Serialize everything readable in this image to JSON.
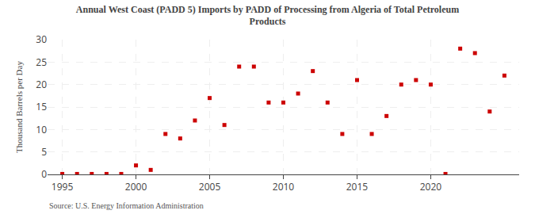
{
  "chart_data": {
    "type": "scatter",
    "title": "Annual West Coast (PADD 5) Imports by PADD of Processing from Algeria of Total Petroleum\nProducts",
    "ylabel": "Thousand Barrels per Day",
    "annotations": [
      "Source: U.S. Energy Information Administration"
    ],
    "x": [
      1995,
      1996,
      1997,
      1998,
      1999,
      2000,
      2001,
      2002,
      2003,
      2004,
      2005,
      2006,
      2007,
      2008,
      2009,
      2010,
      2011,
      2012,
      2013,
      2014,
      2015,
      2016,
      2017,
      2018,
      2019,
      2020,
      2021,
      2022,
      2023,
      2024,
      2025
    ],
    "values": [
      0.1,
      0.1,
      0.1,
      0.1,
      0.1,
      2.0,
      1.0,
      9.0,
      8.0,
      12.0,
      17.0,
      11.0,
      24.0,
      24.0,
      16.0,
      16.0,
      18.0,
      23.0,
      16.0,
      9.0,
      21.0,
      9.0,
      13.0,
      20.0,
      21.0,
      20.0,
      0.1,
      28.0,
      27.0,
      14.0,
      22.0
    ],
    "color": "#cc0000",
    "marker": "square",
    "xlim": [
      1994,
      2026
    ],
    "xticks": [
      1995,
      2000,
      2005,
      2010,
      2015,
      2020
    ],
    "ylim": [
      0,
      30
    ],
    "yticks": [
      0,
      5,
      10,
      15,
      20,
      25,
      30
    ],
    "grid": true
  }
}
